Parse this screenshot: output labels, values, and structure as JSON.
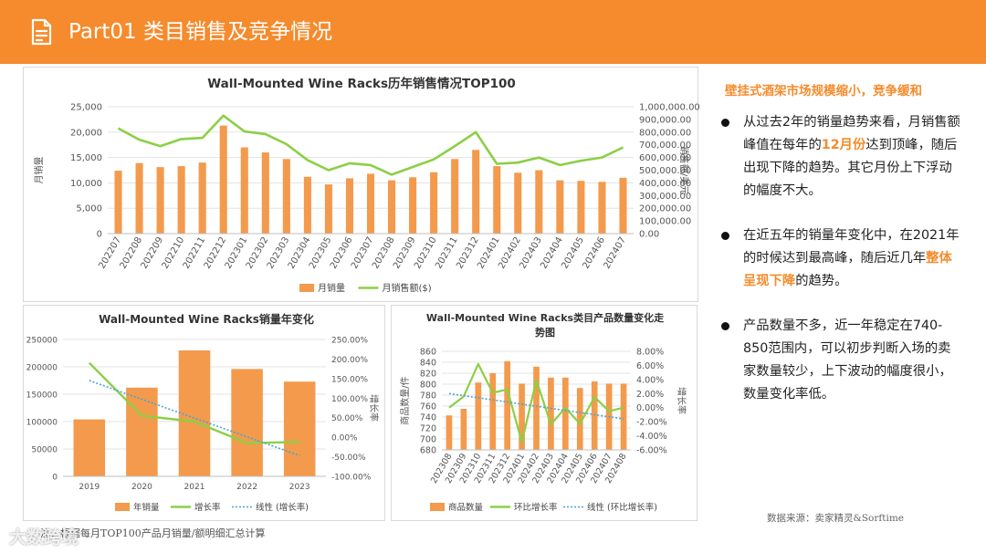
{
  "header": {
    "title": "Part01 类目销售及竞争情况",
    "icon": "document-icon",
    "color": "#f58b2c"
  },
  "side": {
    "title": "壁挂式酒架市场规模缩小，竞争缓和",
    "bullets": [
      {
        "parts": [
          {
            "text": "从过去2年的销量趋势来看，月销售额峰值在每年的"
          },
          {
            "text": "12月份",
            "hl": true
          },
          {
            "text": "达到顶峰，随后出现下降的趋势。其它月份上下浮动的幅度不大。"
          }
        ]
      },
      {
        "parts": [
          {
            "text": "在近五年的销量年变化中，在2021年的时候达到最高峰，随后近几年"
          },
          {
            "text": "整体呈现下降",
            "hl": true
          },
          {
            "text": "的趋势。"
          }
        ]
      },
      {
        "parts": [
          {
            "text": "产品数量不多，近一年稳定在740-850范围内，可以初步判断入场的卖家数量较少，上下波动的幅度很小，数量变化率低。"
          }
        ]
      }
    ]
  },
  "source": "数据来源：卖家精灵&Sorftime",
  "note": "注：根据每月TOP100产品月销量/额明细汇总计算",
  "watermark": "大数跨境",
  "colors": {
    "bar": "#f39a4c",
    "line": "#8ccf45",
    "trend": "#4aa3d8"
  },
  "chart_data": [
    {
      "type": "bar",
      "title": "Wall-Mounted Wine Racks历年销售情况TOP100",
      "categories": [
        "202207",
        "202208",
        "202209",
        "202210",
        "202211",
        "202212",
        "202301",
        "202302",
        "202303",
        "202304",
        "202305",
        "202306",
        "202307",
        "202308",
        "202309",
        "202310",
        "202311",
        "202312",
        "202401",
        "202402",
        "202403",
        "202404",
        "202405",
        "202406",
        "202407"
      ],
      "series": [
        {
          "name": "月销量",
          "type": "bar",
          "axis": "left",
          "values": [
            12400,
            13900,
            13100,
            13300,
            14000,
            21300,
            17000,
            16000,
            14700,
            11200,
            9700,
            10900,
            11800,
            10500,
            11100,
            12100,
            14700,
            16500,
            13300,
            12000,
            12500,
            10500,
            10400,
            10200,
            11000
          ]
        },
        {
          "name": "月销售额($)",
          "type": "line",
          "axis": "right",
          "values": [
            830000,
            740000,
            690000,
            745000,
            755000,
            930000,
            805000,
            785000,
            705000,
            580000,
            500000,
            555000,
            540000,
            465000,
            525000,
            585000,
            690000,
            800000,
            550000,
            560000,
            600000,
            540000,
            575000,
            600000,
            680000
          ]
        }
      ],
      "ylabel": "月销量",
      "y2label": "销售额/美元",
      "ylim": [
        0,
        25000
      ],
      "yticks": [
        "0",
        "5,000",
        "10,000",
        "15,000",
        "20,000",
        "25,000"
      ],
      "y2lim": [
        0,
        1000000
      ],
      "y2ticks": [
        "0.00",
        "100,000.00",
        "200,000.00",
        "300,000.00",
        "400,000.00",
        "500,000.00",
        "600,000.00",
        "700,000.00",
        "800,000.00",
        "900,000.00",
        "1,000,000.00"
      ],
      "legend": "bottom"
    },
    {
      "type": "bar",
      "title": "Wall-Mounted Wine Racks销量年变化",
      "categories": [
        "2019",
        "2020",
        "2021",
        "2022",
        "2023"
      ],
      "series": [
        {
          "name": "年销量",
          "type": "bar",
          "axis": "left",
          "values": [
            104000,
            162000,
            230000,
            196000,
            173000
          ]
        },
        {
          "name": "增长率",
          "type": "line",
          "axis": "right",
          "values": [
            190,
            55,
            40,
            -15,
            -12
          ]
        },
        {
          "name": "线性 (增长率)",
          "type": "trend",
          "axis": "right",
          "values": [
            145,
            97,
            49,
            1,
            -47
          ]
        }
      ],
      "ylabel": "",
      "y2label": "增长率",
      "ylim": [
        0,
        250000
      ],
      "yticks": [
        "0",
        "50000",
        "100000",
        "150000",
        "200000",
        "250000"
      ],
      "y2lim": [
        -100,
        250
      ],
      "y2ticks": [
        "-100.00%",
        "-50.00%",
        "0.00%",
        "50.00%",
        "100.00%",
        "150.00%",
        "200.00%",
        "250.00%"
      ],
      "legend": "bottom"
    },
    {
      "type": "bar",
      "title": "Wall-Mounted Wine Racks类目产品数量变化走势图",
      "title_lines": [
        "Wall-Mounted Wine Racks类目产品数量变化走",
        "势图"
      ],
      "categories": [
        "202308",
        "202309",
        "202310",
        "202311",
        "202312",
        "202401",
        "202402",
        "202403",
        "202404",
        "202405",
        "202406",
        "202407",
        "202408"
      ],
      "series": [
        {
          "name": "商品数量",
          "type": "bar",
          "axis": "left",
          "values": [
            743,
            755,
            803,
            820,
            842,
            801,
            832,
            812,
            812,
            793,
            805,
            801,
            801
          ]
        },
        {
          "name": "环比增长率",
          "type": "line",
          "axis": "right",
          "values": [
            0.0,
            1.6,
            6.2,
            2.1,
            2.6,
            -4.9,
            3.9,
            -2.4,
            0.0,
            -2.3,
            1.5,
            -0.5,
            0.0
          ]
        },
        {
          "name": "线性 (环比增长率)",
          "type": "trend",
          "axis": "right",
          "values": [
            2.0,
            1.7,
            1.4,
            1.1,
            0.8,
            0.5,
            0.2,
            -0.1,
            -0.4,
            -0.7,
            -1.0,
            -1.3,
            -1.6
          ]
        }
      ],
      "ylabel": "商品数量/件",
      "y2label": "增长率",
      "ylim": [
        680,
        860
      ],
      "yticks": [
        "680",
        "700",
        "720",
        "740",
        "760",
        "780",
        "800",
        "820",
        "840",
        "860"
      ],
      "y2lim": [
        -6,
        8
      ],
      "y2ticks": [
        "-6.00%",
        "-4.00%",
        "-2.00%",
        "0.00%",
        "2.00%",
        "4.00%",
        "6.00%",
        "8.00%"
      ],
      "legend": "bottom"
    }
  ]
}
